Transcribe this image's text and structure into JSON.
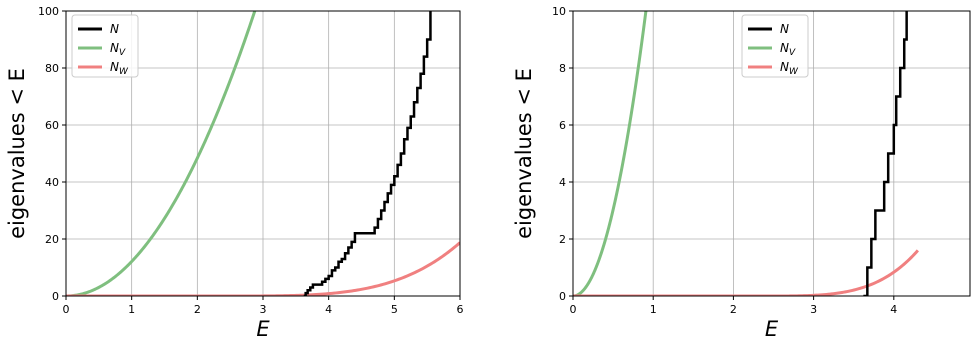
{
  "chart_data": [
    {
      "type": "line",
      "xlabel": "E",
      "ylabel": "eigenvalues < E",
      "xlim": [
        0,
        6
      ],
      "ylim": [
        0,
        100
      ],
      "xticks": [
        0,
        1,
        2,
        3,
        4,
        5,
        6
      ],
      "yticks": [
        0,
        20,
        40,
        60,
        80,
        100
      ],
      "grid": true,
      "legend": {
        "placement": "top-left",
        "entries": [
          "N",
          "NV",
          "NW"
        ]
      },
      "series": [
        {
          "name": "N",
          "color": "#000000",
          "kind": "step",
          "x": [
            3.62,
            3.65,
            3.68,
            3.72,
            3.76,
            3.8,
            3.9,
            3.95,
            4.0,
            4.05,
            4.1,
            4.15,
            4.2,
            4.25,
            4.3,
            4.35,
            4.4,
            4.62,
            4.7,
            4.75,
            4.8,
            4.85,
            4.9,
            4.95,
            5.0,
            5.05,
            5.1,
            5.15,
            5.2,
            5.25,
            5.3,
            5.35,
            5.4,
            5.45,
            5.5,
            5.55
          ],
          "y": [
            0,
            1,
            2,
            3,
            4,
            4,
            5,
            6,
            7,
            9,
            10,
            12,
            13,
            15,
            17,
            19,
            22,
            22,
            24,
            27,
            30,
            33,
            36,
            39,
            42,
            46,
            50,
            55,
            59,
            63,
            68,
            73,
            78,
            84,
            90,
            100
          ]
        },
        {
          "name": "NV",
          "color": "#7fbf7f",
          "kind": "function",
          "coef": 12.1,
          "power": 2,
          "xrange": [
            0,
            2.9
          ]
        },
        {
          "name": "NW",
          "color": "#f08080",
          "kind": "function",
          "coef": 0.1,
          "shift": 2.3,
          "power": 4,
          "xrange": [
            0,
            6
          ]
        }
      ]
    },
    {
      "type": "line",
      "xlabel": "E",
      "ylabel": "eigenvalues < E",
      "xlim": [
        0,
        4.95
      ],
      "ylim": [
        0,
        10
      ],
      "xticks": [
        0,
        1,
        2,
        3,
        4
      ],
      "yticks": [
        0,
        2,
        4,
        6,
        8,
        10
      ],
      "grid": true,
      "legend": {
        "placement": "top-center",
        "entries": [
          "N",
          "NV",
          "NW"
        ]
      },
      "series": [
        {
          "name": "N",
          "color": "#000000",
          "kind": "step",
          "x": [
            3.62,
            3.67,
            3.72,
            3.77,
            3.88,
            3.93,
            4.0,
            4.03,
            4.08,
            4.13,
            4.16
          ],
          "y": [
            0,
            1,
            2,
            3,
            4,
            5,
            6,
            7,
            8,
            9,
            10
          ]
        },
        {
          "name": "NV",
          "color": "#7fbf7f",
          "kind": "function",
          "coef": 12.1,
          "power": 2,
          "xrange": [
            0,
            0.92
          ]
        },
        {
          "name": "NW",
          "color": "#f08080",
          "kind": "function",
          "coef": 0.1,
          "shift": 2.3,
          "power": 4,
          "xrange": [
            0,
            4.3
          ]
        }
      ]
    }
  ]
}
